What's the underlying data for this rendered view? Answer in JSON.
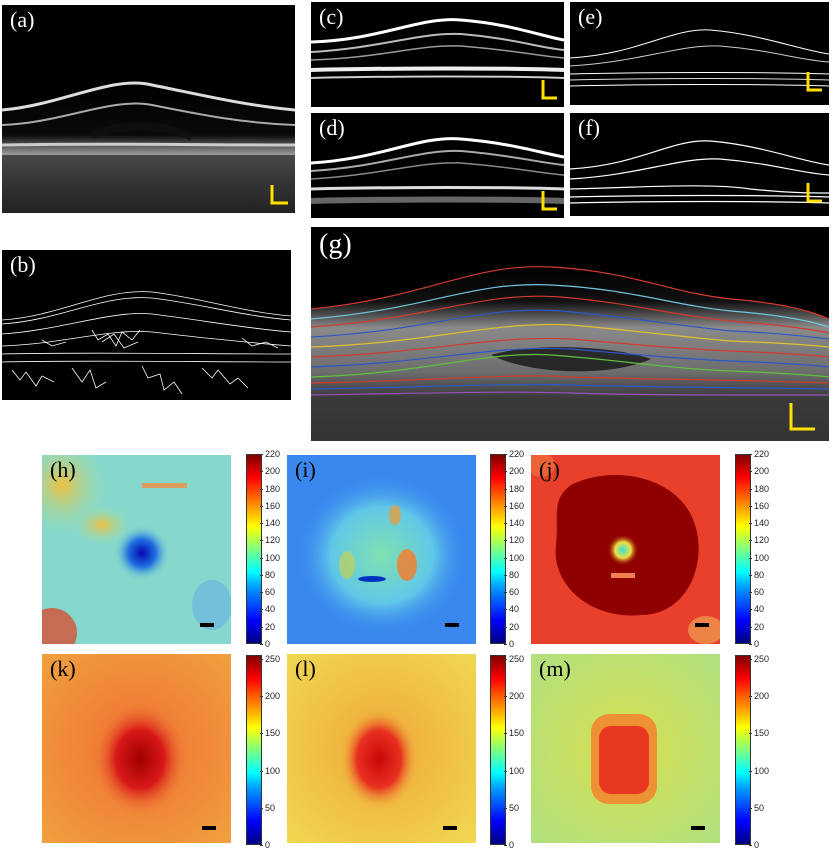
{
  "panels": {
    "a": {
      "label": "(a)"
    },
    "b": {
      "label": "(b)"
    },
    "c": {
      "label": "(c)"
    },
    "d": {
      "label": "(d)"
    },
    "e": {
      "label": "(e)"
    },
    "f": {
      "label": "(f)"
    },
    "g": {
      "label": "(g)"
    },
    "h": {
      "label": "(h)"
    },
    "i": {
      "label": "(i)"
    },
    "j": {
      "label": "(j)"
    },
    "k": {
      "label": "(k)"
    },
    "l": {
      "label": "(l)"
    },
    "m": {
      "label": "(m)"
    }
  },
  "colorbar_top": {
    "ticks": [
      "220",
      "200",
      "180",
      "160",
      "140",
      "120",
      "100",
      "80",
      "60",
      "40",
      "20",
      "0"
    ]
  },
  "colorbar_bottom": {
    "ticks": [
      "250",
      "200",
      "150",
      "100",
      "50",
      "0"
    ]
  },
  "colors": {
    "scale_bar_yellow": "#ffe000",
    "layer_red": "#d23b2c",
    "layer_blue": "#2a58c8",
    "layer_yellow": "#e0c030",
    "layer_green": "#60c040",
    "layer_cyan": "#70c8e0",
    "layer_purple": "#9a50c0"
  }
}
